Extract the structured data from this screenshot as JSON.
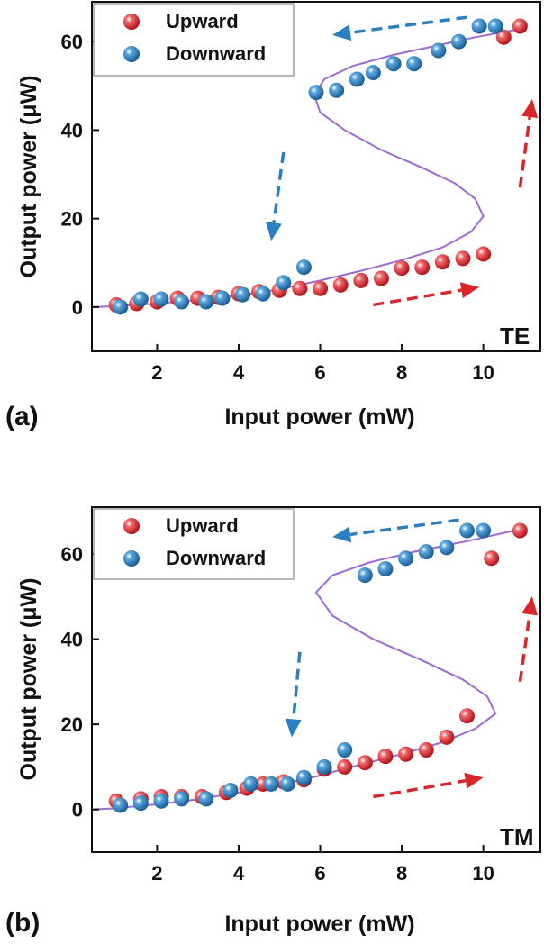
{
  "colors": {
    "upward": "#d9262b",
    "downward": "#2a7fc0",
    "curve": "#9b6bd1",
    "upward_arrow": "#d9262b",
    "downward_arrow": "#2a7fc0"
  },
  "chart_data": [
    {
      "type": "scatter",
      "panel_label": "(a)",
      "mode_label": "TE",
      "xlabel": "Input power (mW)",
      "ylabel": "Output power (μW)",
      "xlim": [
        0.4,
        11.4
      ],
      "ylim": [
        -10,
        69
      ],
      "xticks": [
        2,
        4,
        6,
        8,
        10
      ],
      "yticks": [
        0,
        20,
        40,
        60
      ],
      "legend_position": "top-left",
      "series": [
        {
          "name": "Upward",
          "color_key": "upward",
          "points": [
            [
              1.0,
              0.5
            ],
            [
              1.5,
              0.8
            ],
            [
              2.0,
              1.2
            ],
            [
              2.5,
              2.0
            ],
            [
              3.0,
              2.0
            ],
            [
              3.5,
              2.2
            ],
            [
              4.0,
              3.0
            ],
            [
              4.5,
              3.5
            ],
            [
              5.0,
              3.8
            ],
            [
              5.5,
              4.2
            ],
            [
              6.0,
              4.2
            ],
            [
              6.5,
              5.0
            ],
            [
              7.0,
              6.0
            ],
            [
              7.5,
              6.5
            ],
            [
              8.0,
              8.8
            ],
            [
              8.5,
              9.0
            ],
            [
              9.0,
              10.2
            ],
            [
              9.5,
              11.0
            ],
            [
              10.0,
              12.0
            ],
            [
              10.5,
              61.0
            ],
            [
              10.9,
              63.5
            ]
          ]
        },
        {
          "name": "Downward",
          "color_key": "downward",
          "points": [
            [
              1.1,
              0.0
            ],
            [
              1.6,
              1.8
            ],
            [
              2.1,
              1.8
            ],
            [
              2.6,
              1.2
            ],
            [
              3.2,
              1.2
            ],
            [
              3.6,
              2.0
            ],
            [
              4.1,
              2.8
            ],
            [
              4.6,
              3.0
            ],
            [
              5.1,
              5.5
            ],
            [
              5.6,
              9.0
            ],
            [
              5.9,
              48.5
            ],
            [
              6.4,
              49.0
            ],
            [
              6.9,
              51.5
            ],
            [
              7.3,
              53.0
            ],
            [
              7.8,
              55.0
            ],
            [
              8.3,
              55.0
            ],
            [
              8.9,
              58.0
            ],
            [
              9.4,
              60.0
            ],
            [
              9.9,
              63.5
            ],
            [
              10.3,
              63.5
            ]
          ]
        }
      ],
      "fit_curve": [
        [
          0.4,
          0.0
        ],
        [
          1,
          0.2
        ],
        [
          2,
          0.8
        ],
        [
          3,
          1.6
        ],
        [
          4,
          2.6
        ],
        [
          5,
          4.0
        ],
        [
          6,
          6.0
        ],
        [
          7,
          8.2
        ],
        [
          8,
          10.6
        ],
        [
          9,
          13.5
        ],
        [
          9.7,
          17.0
        ],
        [
          10.0,
          20.5
        ],
        [
          9.8,
          24.5
        ],
        [
          9.3,
          28.0
        ],
        [
          8.5,
          31.5
        ],
        [
          7.5,
          35.5
        ],
        [
          6.6,
          40.0
        ],
        [
          6.0,
          44.0
        ],
        [
          5.85,
          48.0
        ],
        [
          6.1,
          51.5
        ],
        [
          6.8,
          54.5
        ],
        [
          7.8,
          57.0
        ],
        [
          8.8,
          59.0
        ],
        [
          9.8,
          61.0
        ],
        [
          11.0,
          63.0
        ]
      ],
      "arrows": [
        {
          "from": [
            9.6,
            65.5
          ],
          "to": [
            6.3,
            61.5
          ],
          "color_key": "downward_arrow"
        },
        {
          "from": [
            5.1,
            35.0
          ],
          "to": [
            4.8,
            15.0
          ],
          "color_key": "downward_arrow"
        },
        {
          "from": [
            7.3,
            0.5
          ],
          "to": [
            9.9,
            4.5
          ],
          "color_key": "upward_arrow"
        },
        {
          "from": [
            10.9,
            27.0
          ],
          "to": [
            11.2,
            47.0
          ],
          "color_key": "upward_arrow"
        }
      ]
    },
    {
      "type": "scatter",
      "panel_label": "(b)",
      "mode_label": "TM",
      "xlabel": "Input power (mW)",
      "ylabel": "Output power (μW)",
      "xlim": [
        0.4,
        11.4
      ],
      "ylim": [
        -10,
        71
      ],
      "xticks": [
        2,
        4,
        6,
        8,
        10
      ],
      "yticks": [
        0,
        20,
        40,
        60
      ],
      "legend_position": "top-left",
      "series": [
        {
          "name": "Upward",
          "color_key": "upward",
          "points": [
            [
              1.0,
              2.0
            ],
            [
              1.6,
              2.5
            ],
            [
              2.1,
              3.0
            ],
            [
              2.6,
              3.0
            ],
            [
              3.1,
              3.0
            ],
            [
              3.7,
              4.0
            ],
            [
              4.2,
              5.0
            ],
            [
              4.6,
              6.0
            ],
            [
              5.1,
              6.5
            ],
            [
              5.6,
              7.0
            ],
            [
              6.1,
              9.5
            ],
            [
              6.6,
              10.0
            ],
            [
              7.1,
              11.0
            ],
            [
              7.6,
              12.5
            ],
            [
              8.1,
              13.0
            ],
            [
              8.6,
              14.0
            ],
            [
              9.1,
              17.0
            ],
            [
              9.6,
              22.0
            ],
            [
              10.2,
              59.0
            ],
            [
              10.9,
              65.5
            ]
          ]
        },
        {
          "name": "Downward",
          "color_key": "downward",
          "points": [
            [
              1.1,
              1.0
            ],
            [
              1.6,
              1.5
            ],
            [
              2.1,
              2.0
            ],
            [
              2.6,
              2.5
            ],
            [
              3.2,
              2.5
            ],
            [
              3.8,
              4.5
            ],
            [
              4.3,
              6.0
            ],
            [
              4.8,
              6.0
            ],
            [
              5.2,
              6.0
            ],
            [
              5.6,
              7.5
            ],
            [
              6.1,
              10.0
            ],
            [
              6.6,
              14.0
            ],
            [
              7.1,
              55.0
            ],
            [
              7.6,
              56.5
            ],
            [
              8.1,
              59.0
            ],
            [
              8.6,
              60.5
            ],
            [
              9.1,
              61.5
            ],
            [
              9.6,
              65.5
            ],
            [
              10.0,
              65.5
            ]
          ]
        }
      ],
      "fit_curve": [
        [
          0.4,
          0.0
        ],
        [
          1,
          0.3
        ],
        [
          2,
          1.2
        ],
        [
          3,
          2.4
        ],
        [
          4,
          4.0
        ],
        [
          5,
          5.8
        ],
        [
          6,
          8.0
        ],
        [
          7,
          10.6
        ],
        [
          8,
          13.0
        ],
        [
          9,
          15.8
        ],
        [
          9.8,
          19.0
        ],
        [
          10.3,
          22.5
        ],
        [
          10.1,
          26.5
        ],
        [
          9.5,
          30.5
        ],
        [
          8.5,
          35.0
        ],
        [
          7.3,
          40.0
        ],
        [
          6.3,
          45.5
        ],
        [
          5.9,
          51.0
        ],
        [
          6.3,
          55.0
        ],
        [
          7.2,
          58.0
        ],
        [
          8.3,
          60.5
        ],
        [
          9.6,
          63.0
        ],
        [
          11.0,
          66.0
        ]
      ],
      "arrows": [
        {
          "from": [
            9.4,
            68.0
          ],
          "to": [
            6.3,
            64.0
          ],
          "color_key": "downward_arrow"
        },
        {
          "from": [
            5.5,
            37.0
          ],
          "to": [
            5.3,
            17.0
          ],
          "color_key": "downward_arrow"
        },
        {
          "from": [
            7.3,
            3.0
          ],
          "to": [
            10.0,
            7.5
          ],
          "color_key": "upward_arrow"
        },
        {
          "from": [
            10.9,
            30.0
          ],
          "to": [
            11.2,
            50.0
          ],
          "color_key": "upward_arrow"
        }
      ]
    }
  ]
}
